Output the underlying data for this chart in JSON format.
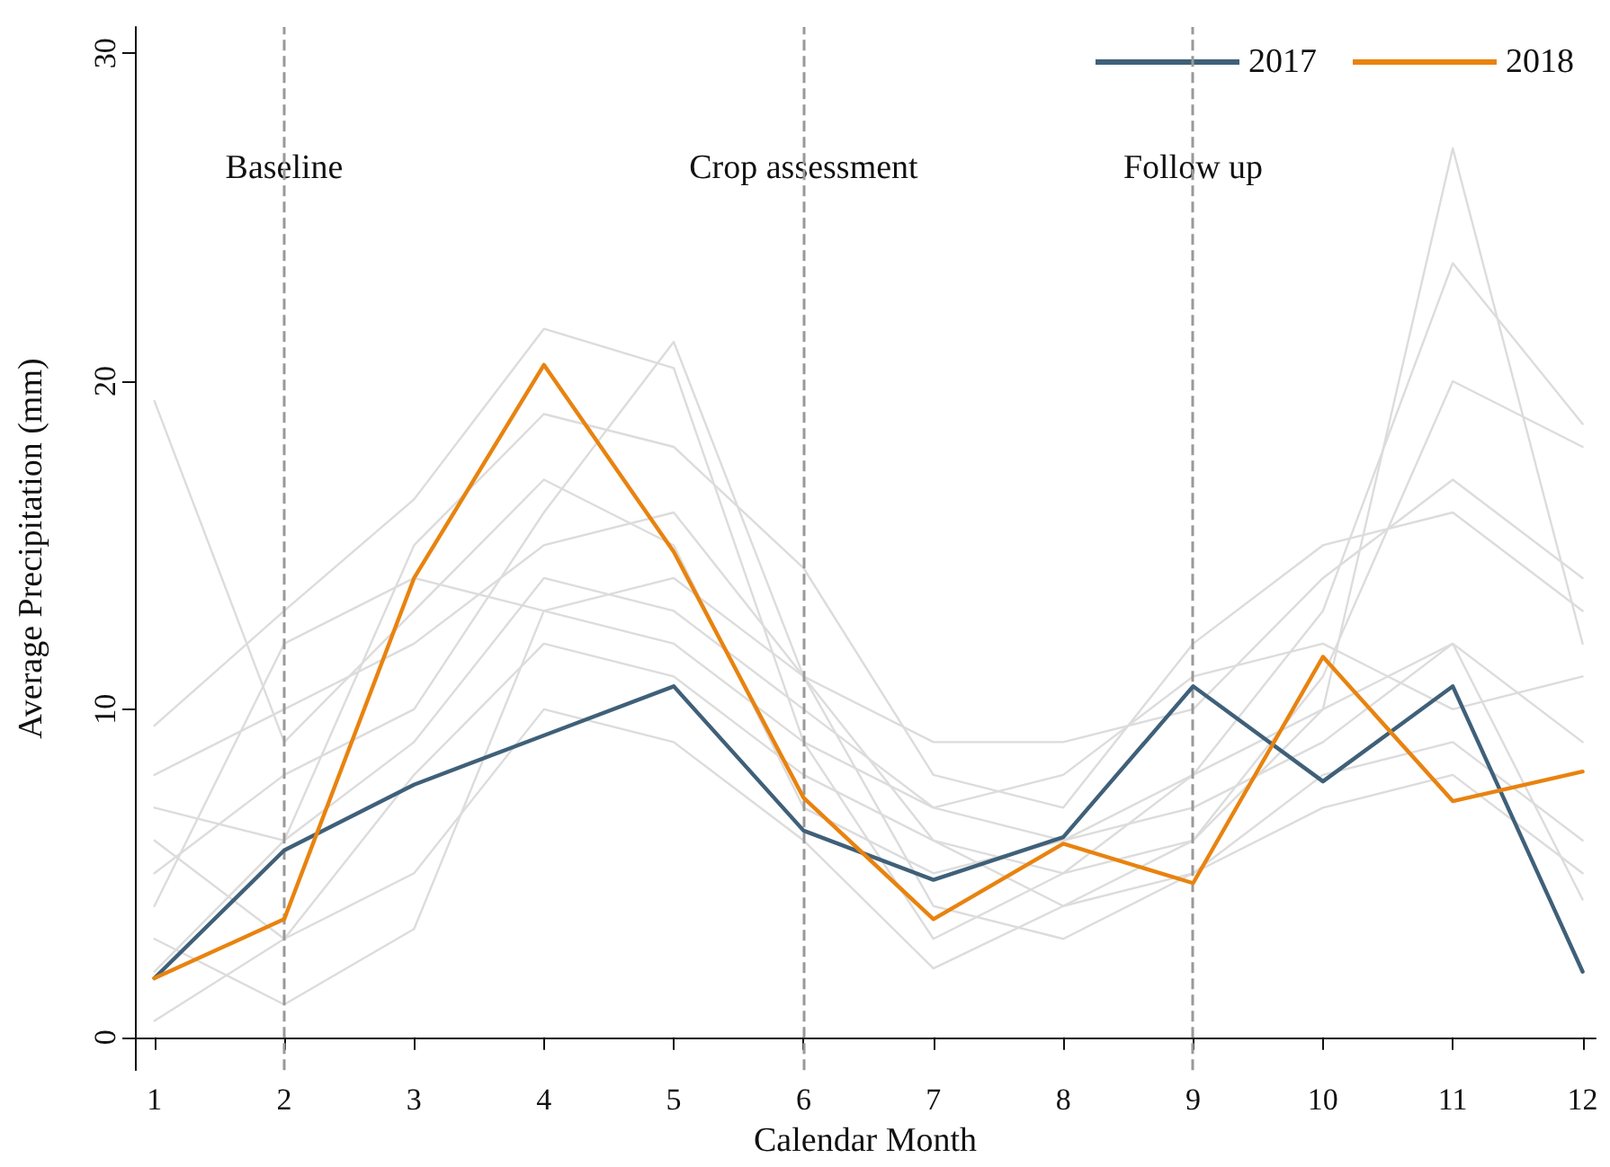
{
  "chart_data": {
    "type": "line",
    "xlabel": "Calendar Month",
    "ylabel": "Average Precipitation (mm)",
    "x": [
      1,
      2,
      3,
      4,
      5,
      6,
      7,
      8,
      9,
      10,
      11,
      12
    ],
    "xlim": [
      0.85,
      12.1
    ],
    "xticks": [
      1,
      2,
      3,
      4,
      5,
      6,
      7,
      8,
      9,
      10,
      11,
      12
    ],
    "ylim": [
      -1,
      30.8
    ],
    "yticks": [
      0,
      10,
      20,
      30
    ],
    "grid": false,
    "legend": "top right",
    "marker": "none",
    "line_style": "solid",
    "ref_lines": [
      {
        "axis": "x",
        "value": 2,
        "label": "Baseline",
        "color": "#999999",
        "line_style": "dashed"
      },
      {
        "axis": "x",
        "value": 6,
        "label": "Crop assessment",
        "color": "#999999",
        "line_style": "dashed"
      },
      {
        "axis": "x",
        "value": 9,
        "label": "Follow up",
        "color": "#999999",
        "line_style": "dashed"
      }
    ],
    "series": [
      {
        "color": "#dcdcdc",
        "values": [
          19.4,
          9,
          13,
          17,
          15,
          7,
          5,
          6,
          7,
          9,
          12,
          9
        ]
      },
      {
        "color": "#dcdcdc",
        "values": [
          0.5,
          3,
          8,
          12,
          11,
          8,
          6,
          5,
          6,
          10,
          27.1,
          12
        ]
      },
      {
        "color": "#dcdcdc",
        "values": [
          9.5,
          13,
          16.4,
          21.6,
          20.4,
          9,
          3,
          5,
          8,
          13,
          23.6,
          18.7
        ]
      },
      {
        "color": "#dcdcdc",
        "values": [
          5,
          8,
          10,
          16,
          21.2,
          11,
          6,
          4,
          6,
          11,
          20,
          18
        ]
      },
      {
        "color": "#dcdcdc",
        "values": [
          3,
          1,
          3.3,
          13,
          14,
          11,
          4,
          3,
          5,
          8,
          9,
          6
        ]
      },
      {
        "color": "#dcdcdc",
        "values": [
          7,
          6,
          15,
          19,
          18,
          14.3,
          8,
          7,
          12,
          15,
          16,
          13
        ]
      },
      {
        "color": "#dcdcdc",
        "values": [
          4,
          12,
          14,
          13,
          12,
          9,
          7,
          8,
          11,
          12,
          10,
          11
        ]
      },
      {
        "color": "#dcdcdc",
        "values": [
          6,
          3,
          5,
          10,
          9,
          6,
          2.1,
          4,
          5,
          7,
          8,
          5
        ]
      },
      {
        "color": "#dcdcdc",
        "values": [
          8,
          10,
          12,
          15,
          16,
          11,
          9,
          9,
          10,
          14,
          17,
          14
        ]
      },
      {
        "color": "#dcdcdc",
        "values": [
          2,
          6,
          9,
          14,
          13,
          10,
          7,
          6,
          8,
          10,
          12,
          4.2
        ]
      },
      {
        "name": "2017",
        "color": "#3f6079",
        "values": [
          1.8,
          5.7,
          7.7,
          9.2,
          10.7,
          6.3,
          4.8,
          6.1,
          10.7,
          7.8,
          10.7,
          2.0
        ]
      },
      {
        "name": "2018",
        "color": "#e8830f",
        "values": [
          1.8,
          3.6,
          14.0,
          20.5,
          14.8,
          7.3,
          3.6,
          5.9,
          4.7,
          11.6,
          7.2,
          8.1
        ]
      }
    ]
  }
}
